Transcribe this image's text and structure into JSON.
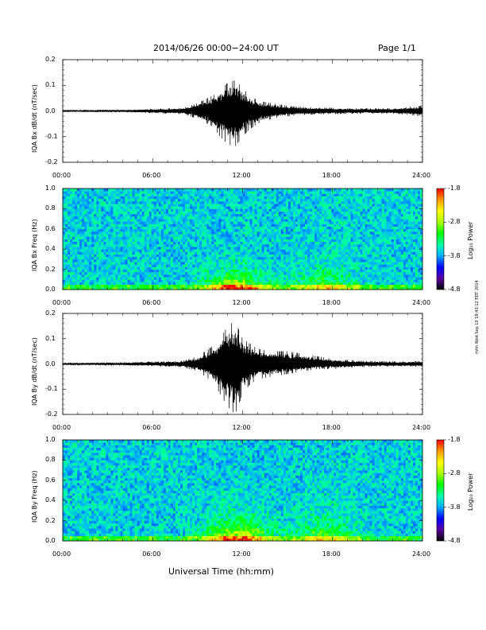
{
  "header": {
    "title": "2014/06/26  00:00−24:00 UT",
    "page": "Page 1/1"
  },
  "footer": {
    "xlabel": "Universal Time (hh:mm)",
    "stamp": "mhh Wed Sep 10 19:43:12 EDT 2014"
  },
  "colorbar": {
    "label": "Log₁₀ Power",
    "ticks": [
      "-1.8",
      "-2.8",
      "-3.8",
      "-4.8"
    ],
    "range": [
      -4.8,
      -1.8
    ],
    "colors": [
      "#000000",
      "#5a00a0",
      "#0000ff",
      "#00aaff",
      "#00ffaa",
      "#00ff00",
      "#aaff00",
      "#ffff00",
      "#ff9900",
      "#ff0000"
    ]
  },
  "chart_data": [
    {
      "type": "line",
      "ylabel": "IQA Bx dB/dt (nT/sec)",
      "xlim": [
        "00:00",
        "24:00"
      ],
      "ylim": [
        -0.2,
        0.2
      ],
      "xticks": [
        "00:00",
        "06:00",
        "12:00",
        "18:00",
        "24:00"
      ],
      "yticks": [
        "0.2",
        "0.1",
        "0.0",
        "-0.1",
        "-0.2"
      ],
      "envelope": {
        "x_hours": [
          0,
          4,
          8,
          9,
          10,
          10.5,
          11,
          11.5,
          12,
          12.5,
          13,
          14,
          15,
          16,
          18,
          20,
          22,
          24
        ],
        "y_max": [
          0.004,
          0.005,
          0.012,
          0.03,
          0.06,
          0.08,
          0.11,
          0.12,
          0.09,
          0.06,
          0.04,
          0.03,
          0.02,
          0.015,
          0.012,
          0.01,
          0.01,
          0.02
        ],
        "y_min": [
          -0.004,
          -0.005,
          -0.012,
          -0.03,
          -0.06,
          -0.1,
          -0.13,
          -0.14,
          -0.1,
          -0.07,
          -0.05,
          -0.03,
          -0.02,
          -0.015,
          -0.012,
          -0.01,
          -0.01,
          -0.02
        ]
      }
    },
    {
      "type": "heatmap",
      "ylabel": "IQA Bx Freq (Hz)",
      "xlim": [
        "00:00",
        "24:00"
      ],
      "ylim": [
        0.0,
        1.0
      ],
      "xticks": [
        "00:00",
        "06:00",
        "12:00",
        "18:00",
        "24:00"
      ],
      "yticks": [
        "1.0",
        "0.8",
        "0.6",
        "0.4",
        "0.2",
        "0.0"
      ],
      "zlim": [
        -4.8,
        -1.8
      ],
      "hotspots": [
        {
          "t_hours": 11.5,
          "f_hz": 0.03,
          "log_power": -2.0
        },
        {
          "t_hours": 17.5,
          "f_hz": 0.05,
          "log_power": -2.8
        }
      ]
    },
    {
      "type": "line",
      "ylabel": "IQA By dB/dt (nT/sec)",
      "xlim": [
        "00:00",
        "24:00"
      ],
      "ylim": [
        -0.2,
        0.2
      ],
      "xticks": [
        "00:00",
        "06:00",
        "12:00",
        "18:00",
        "24:00"
      ],
      "yticks": [
        "0.2",
        "0.1",
        "0.0",
        "-0.1",
        "-0.2"
      ],
      "envelope": {
        "x_hours": [
          0,
          4,
          8,
          9,
          10,
          10.5,
          11,
          11.5,
          12,
          12.5,
          13,
          14,
          15,
          16,
          17,
          18,
          20,
          22,
          24
        ],
        "y_max": [
          0.005,
          0.006,
          0.012,
          0.03,
          0.07,
          0.1,
          0.15,
          0.17,
          0.1,
          0.08,
          0.06,
          0.05,
          0.05,
          0.04,
          0.03,
          0.02,
          0.012,
          0.01,
          0.01
        ],
        "y_min": [
          -0.005,
          -0.006,
          -0.012,
          -0.03,
          -0.07,
          -0.12,
          -0.17,
          -0.2,
          -0.12,
          -0.08,
          -0.06,
          -0.05,
          -0.04,
          -0.03,
          -0.02,
          -0.02,
          -0.012,
          -0.01,
          -0.01
        ]
      }
    },
    {
      "type": "heatmap",
      "ylabel": "IQA By Freq (Hz)",
      "xlim": [
        "00:00",
        "24:00"
      ],
      "ylim": [
        0.0,
        1.0
      ],
      "xticks": [
        "00:00",
        "06:00",
        "12:00",
        "18:00",
        "24:00"
      ],
      "yticks": [
        "1.0",
        "0.8",
        "0.6",
        "0.4",
        "0.2",
        "0.0"
      ],
      "zlim": [
        -4.8,
        -1.8
      ],
      "hotspots": [
        {
          "t_hours": 11.7,
          "f_hz": 0.05,
          "log_power": -2.0
        },
        {
          "t_hours": 17.5,
          "f_hz": 0.07,
          "log_power": -2.8
        }
      ]
    }
  ]
}
